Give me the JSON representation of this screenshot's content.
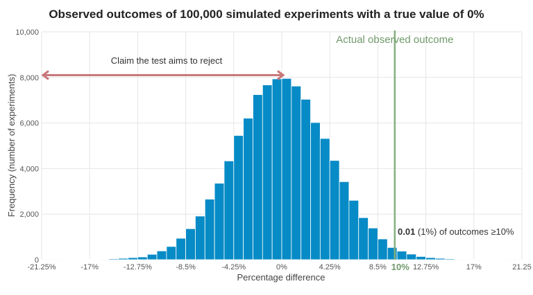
{
  "chart_data": {
    "type": "bar",
    "title": "Observed outcomes of 100,000 simulated experiments with a true value of 0%",
    "xlabel": "Percentage difference",
    "ylabel": "Frequency (number of experiments)",
    "xlim": [
      -21.25,
      21.25
    ],
    "ylim": [
      0,
      10000
    ],
    "bin_width": 0.85,
    "bin_start": -21.25,
    "grid": true,
    "x_ticks": [
      "-21.25%",
      "-17%",
      "-12.75%",
      "-8.5%",
      "-4.25%",
      "0%",
      "4.25%",
      "8.5%",
      "12.75%",
      "17%",
      "21.25"
    ],
    "x_tick_values": [
      -21.25,
      -17,
      -12.75,
      -8.5,
      -4.25,
      0,
      4.25,
      8.5,
      12.75,
      17,
      21.25
    ],
    "y_ticks": [
      "0",
      "2,000",
      "4,000",
      "6,000",
      "8,000",
      "10,000"
    ],
    "y_tick_values": [
      0,
      2000,
      4000,
      6000,
      8000,
      10000
    ],
    "values": [
      1,
      2,
      3,
      5,
      10,
      15,
      25,
      40,
      60,
      90,
      120,
      235,
      385,
      580,
      940,
      1360,
      1915,
      2655,
      3355,
      4335,
      5450,
      6210,
      7245,
      7670,
      7935,
      7955,
      7620,
      7040,
      6020,
      5320,
      4355,
      3425,
      2605,
      1845,
      1390,
      910,
      535,
      375,
      245,
      140,
      90,
      60,
      40,
      25,
      15,
      10,
      5,
      3,
      2,
      1
    ],
    "bar_color": "#078bc6",
    "annotations": {
      "observed_line": {
        "x": 10,
        "label": "Actual observed outcome",
        "tick_label": "10%",
        "color": "#84b07f"
      },
      "claim_arrow": {
        "x_from": -21.25,
        "x_to": 0,
        "y": 8100,
        "label": "Claim the test aims to reject",
        "color": "#c9777a"
      },
      "tail_note": {
        "value": "0.01",
        "rest": " (1%) of outcomes ≥10%"
      }
    }
  }
}
